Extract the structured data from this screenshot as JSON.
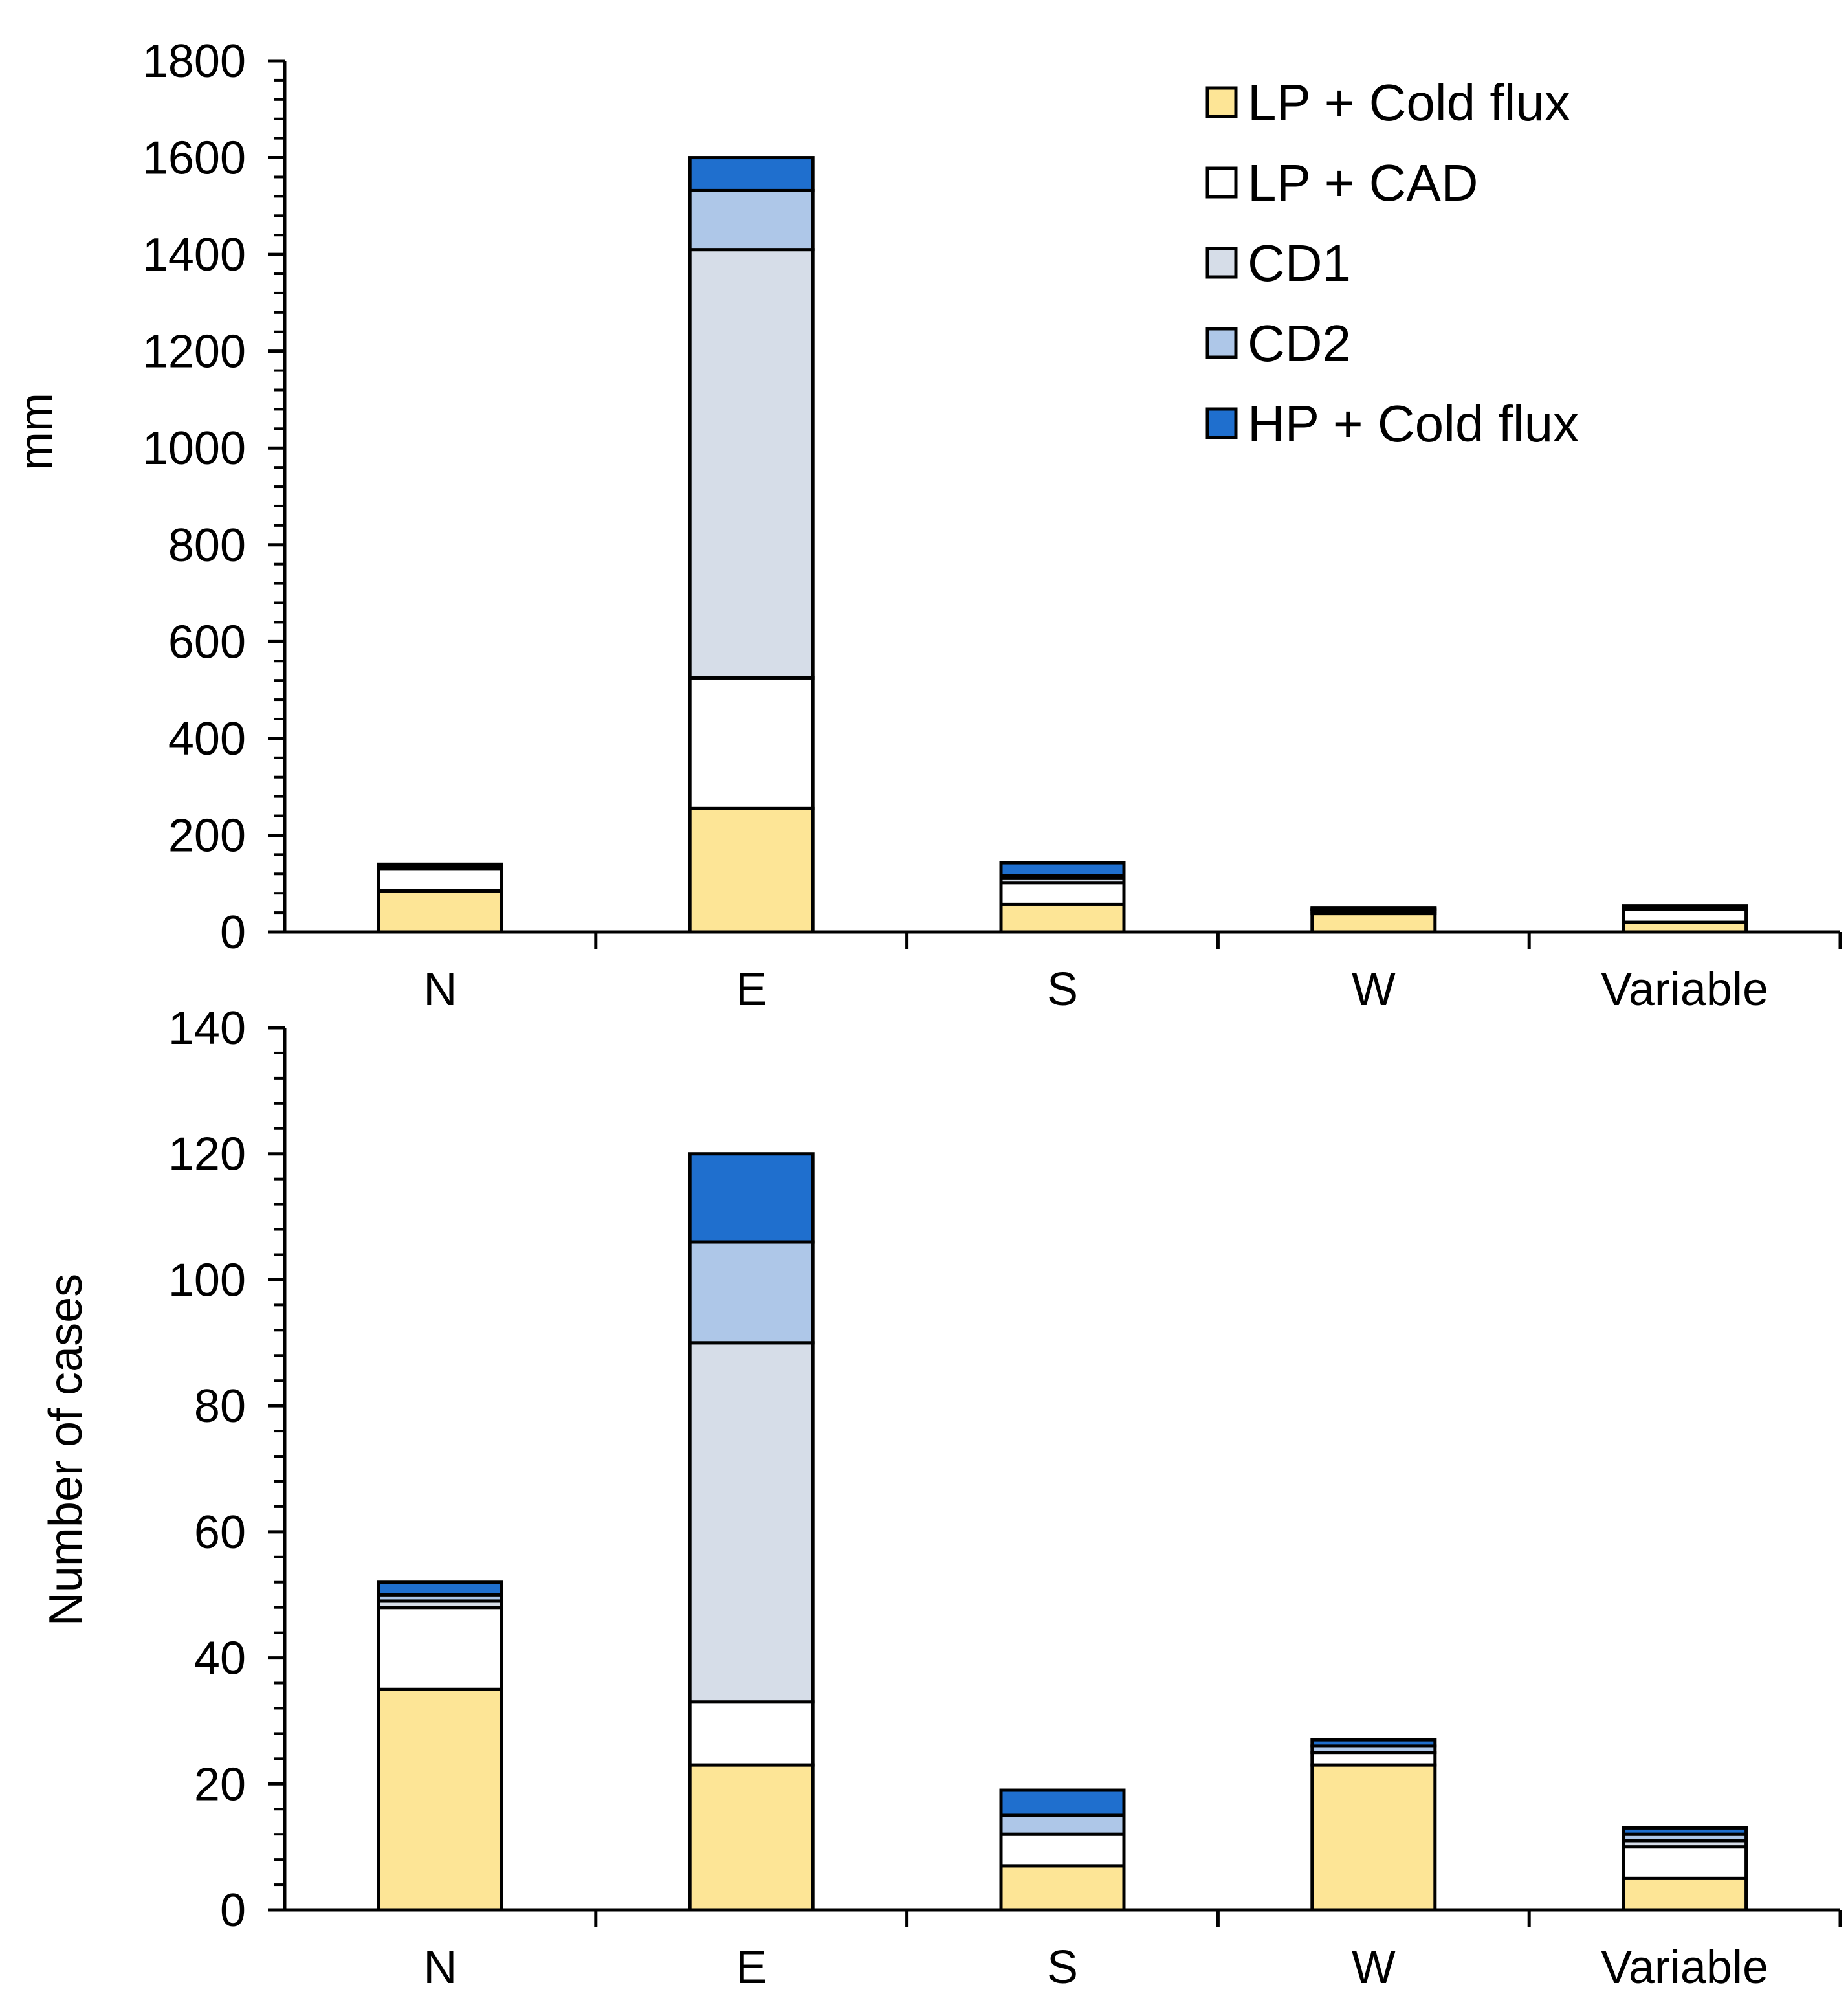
{
  "legend": [
    {
      "label": "LP + Cold flux",
      "color": "#fde596"
    },
    {
      "label": "LP + CAD",
      "color": "#ffffff"
    },
    {
      "label": "CD1",
      "color": "#d6dde8"
    },
    {
      "label": "CD2",
      "color": "#aec7e8"
    },
    {
      "label": "HP + Cold flux",
      "color": "#1f6fce"
    }
  ],
  "chart_data": [
    {
      "type": "bar",
      "stacked": true,
      "title": "",
      "xlabel": "",
      "ylabel": "mm",
      "ylim": [
        0,
        1800
      ],
      "yticks": [
        0,
        200,
        400,
        600,
        800,
        1000,
        1200,
        1400,
        1600,
        1800
      ],
      "categories": [
        "N",
        "E",
        "S",
        "W",
        "Variable"
      ],
      "legend_position": "top-right",
      "series": [
        {
          "name": "LP + Cold flux",
          "values": [
            85,
            255,
            57,
            38,
            20
          ]
        },
        {
          "name": "LP + CAD",
          "values": [
            45,
            270,
            45,
            6,
            27
          ]
        },
        {
          "name": "CD1",
          "values": [
            3,
            885,
            10,
            2,
            3
          ]
        },
        {
          "name": "CD2",
          "values": [
            2,
            122,
            4,
            1,
            2
          ]
        },
        {
          "name": "HP + Cold flux",
          "values": [
            5,
            68,
            27,
            3,
            2
          ]
        }
      ]
    },
    {
      "type": "bar",
      "stacked": true,
      "title": "",
      "xlabel": "",
      "ylabel": "Number of cases",
      "ylim": [
        0,
        140
      ],
      "yticks": [
        0,
        20,
        40,
        60,
        80,
        100,
        120,
        140
      ],
      "categories": [
        "N",
        "E",
        "S",
        "W",
        "Variable"
      ],
      "series": [
        {
          "name": "LP + Cold flux",
          "values": [
            35,
            23,
            7,
            23,
            5
          ]
        },
        {
          "name": "LP + CAD",
          "values": [
            13,
            10,
            5,
            2,
            5
          ]
        },
        {
          "name": "CD1",
          "values": [
            1,
            57,
            0,
            0,
            1
          ]
        },
        {
          "name": "CD2",
          "values": [
            1,
            16,
            3,
            1,
            1
          ]
        },
        {
          "name": "HP + Cold flux",
          "values": [
            2,
            14,
            4,
            1,
            1
          ]
        }
      ]
    }
  ]
}
